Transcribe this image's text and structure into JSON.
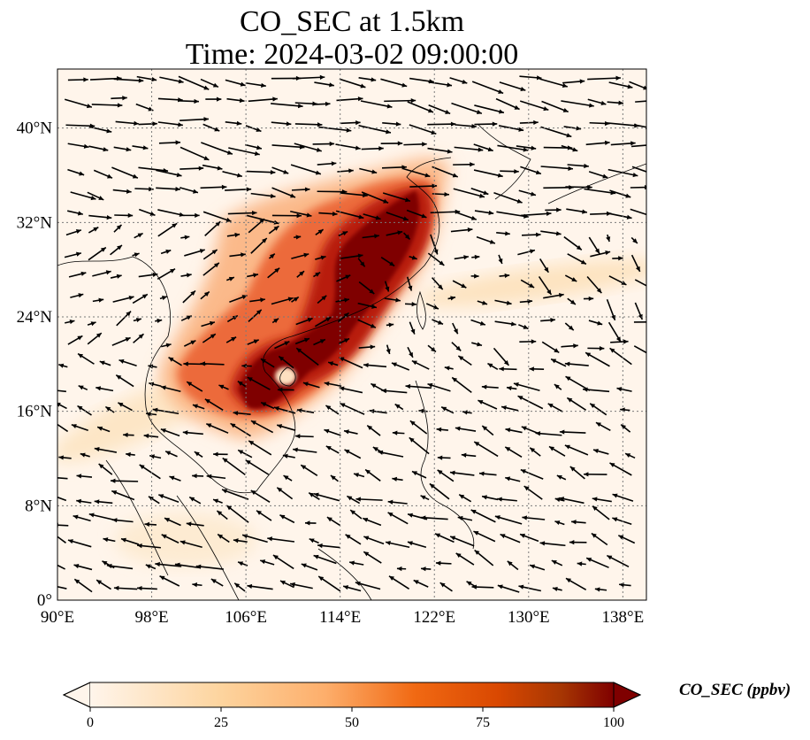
{
  "title_line1": "CO_SEC at 1.5km",
  "title_line2": "Time: 2024-03-02 09:00:00",
  "map": {
    "lon_range": [
      90,
      140
    ],
    "lat_range": [
      0,
      45
    ],
    "lon_ticks": [
      "90°E",
      "98°E",
      "106°E",
      "114°E",
      "122°E",
      "130°E",
      "138°E"
    ],
    "lat_ticks": [
      "0°",
      "8°N",
      "16°N",
      "24°N",
      "32°N",
      "40°N"
    ],
    "gridlines": true,
    "vectors_shown": "wind arrows"
  },
  "colorbar": {
    "label": "CO_SEC (ppbv)",
    "ticks": [
      "0",
      "25",
      "50",
      "75",
      "100"
    ],
    "range": [
      0,
      100
    ],
    "extend": "both",
    "colormap": [
      "#fff5eb",
      "#fdd49e",
      "#fdae6b",
      "#f16913",
      "#d94801",
      "#a63603",
      "#7f0000"
    ]
  },
  "colors": {
    "background": "#fff5eb",
    "high": "#7f0000",
    "mid": "#e0512c",
    "low": "#fdd49e",
    "grid": "#7a7a7a"
  }
}
